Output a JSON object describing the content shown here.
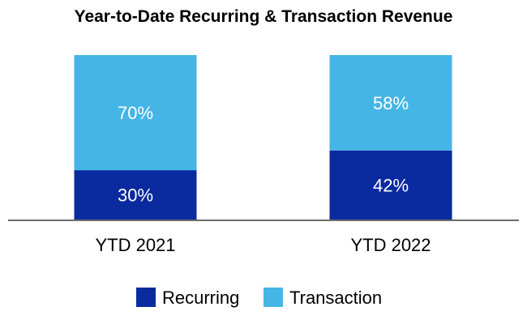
{
  "chart_data": {
    "type": "bar",
    "stacked": true,
    "percent_stacked": true,
    "title": "Year-to-Date Recurring & Transaction Revenue",
    "categories": [
      "YTD 2021",
      "YTD 2022"
    ],
    "series": [
      {
        "name": "Recurring",
        "values": [
          30,
          42
        ],
        "labels": [
          "30%",
          "42%"
        ],
        "color": "#0a2aa0"
      },
      {
        "name": "Transaction",
        "values": [
          70,
          58
        ],
        "labels": [
          "70%",
          "58%"
        ],
        "color": "#45b5e6"
      }
    ],
    "ylim": [
      0,
      100
    ],
    "grid": false,
    "legend": "bottom",
    "axis_color": "#6b6b6b"
  }
}
